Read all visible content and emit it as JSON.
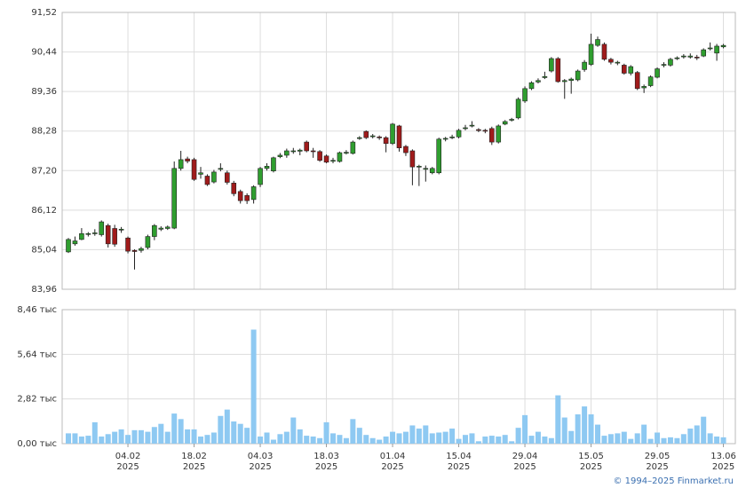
{
  "chart_data": [
    {
      "type": "candlestick",
      "up_color": "#2f9e2f",
      "down_color": "#a01b1b",
      "grid": true,
      "ylim": [
        83.96,
        91.52
      ],
      "yticks": [
        {
          "value": 83.96,
          "label": "83,96"
        },
        {
          "value": 85.04,
          "label": "85,04"
        },
        {
          "value": 86.12,
          "label": "86,12"
        },
        {
          "value": 87.2,
          "label": "87,20"
        },
        {
          "value": 88.28,
          "label": "88,28"
        },
        {
          "value": 89.36,
          "label": "89,36"
        },
        {
          "value": 90.44,
          "label": "90,44"
        },
        {
          "value": 91.52,
          "label": "91,52"
        }
      ],
      "open": [
        84.98,
        85.2,
        85.32,
        85.46,
        85.48,
        85.45,
        85.7,
        85.62,
        85.58,
        85.36,
        85.02,
        85.02,
        85.1,
        85.4,
        85.6,
        85.62,
        85.63,
        87.26,
        87.52,
        87.5,
        87.1,
        87.05,
        86.89,
        87.24,
        87.14,
        86.86,
        86.63,
        86.52,
        86.41,
        86.82,
        87.26,
        87.19,
        87.58,
        87.62,
        87.72,
        87.73,
        87.98,
        87.74,
        87.72,
        87.6,
        87.46,
        87.45,
        87.68,
        87.67,
        88.08,
        88.27,
        88.13,
        88.12,
        88.1,
        87.94,
        88.42,
        87.86,
        87.74,
        87.3,
        87.24,
        87.14,
        87.14,
        88.06,
        88.1,
        88.12,
        88.35,
        88.42,
        88.32,
        88.3,
        88.35,
        87.98,
        88.47,
        88.58,
        88.64,
        89.1,
        89.44,
        89.62,
        89.74,
        89.92,
        90.26,
        89.63,
        89.66,
        89.68,
        89.96,
        90.1,
        90.62,
        90.65,
        90.24,
        90.14,
        90.08,
        89.86,
        89.88,
        89.46,
        89.52,
        89.75,
        90.08,
        90.08,
        90.26,
        90.31,
        90.3,
        90.3,
        90.33,
        90.53,
        90.41,
        90.58
      ],
      "high": [
        85.36,
        85.4,
        85.63,
        85.52,
        85.6,
        85.84,
        85.75,
        85.72,
        85.66,
        85.4,
        85.05,
        85.12,
        85.45,
        85.74,
        85.68,
        85.7,
        87.45,
        87.74,
        87.58,
        87.55,
        87.3,
        87.1,
        87.22,
        87.4,
        87.2,
        86.92,
        86.68,
        86.58,
        86.8,
        87.3,
        87.4,
        87.58,
        87.68,
        87.8,
        87.82,
        87.8,
        88.02,
        87.82,
        87.76,
        87.64,
        87.55,
        87.72,
        87.76,
        88.02,
        88.14,
        88.3,
        88.2,
        88.16,
        88.14,
        88.5,
        88.45,
        87.9,
        87.78,
        87.36,
        87.34,
        87.3,
        88.1,
        88.12,
        88.18,
        88.34,
        88.45,
        88.55,
        88.36,
        88.34,
        88.4,
        88.46,
        88.58,
        88.64,
        89.2,
        89.5,
        89.64,
        89.72,
        89.9,
        90.3,
        90.3,
        89.7,
        89.74,
        89.96,
        90.22,
        90.94,
        90.86,
        90.7,
        90.28,
        90.2,
        90.12,
        90.08,
        89.92,
        89.55,
        89.8,
        90.02,
        90.16,
        90.28,
        90.32,
        90.38,
        90.4,
        90.36,
        90.54,
        90.7,
        90.66,
        90.66
      ],
      "low": [
        84.95,
        85.15,
        85.3,
        85.4,
        85.42,
        85.4,
        85.1,
        85.12,
        85.5,
        84.94,
        84.5,
        84.96,
        85.05,
        85.3,
        85.55,
        85.58,
        85.6,
        87.2,
        87.4,
        86.92,
        86.98,
        86.78,
        86.85,
        87.18,
        86.82,
        86.5,
        86.3,
        86.29,
        86.3,
        86.75,
        87.2,
        87.15,
        87.54,
        87.55,
        87.66,
        87.62,
        87.7,
        87.55,
        87.44,
        87.4,
        87.4,
        87.42,
        87.64,
        87.64,
        88.04,
        88.06,
        88.08,
        88.04,
        87.7,
        87.9,
        87.72,
        87.6,
        86.8,
        86.78,
        86.9,
        87.1,
        87.1,
        88.0,
        88.06,
        88.08,
        88.3,
        88.38,
        88.25,
        88.22,
        87.9,
        87.94,
        88.44,
        88.54,
        88.6,
        89.05,
        89.4,
        89.58,
        89.7,
        89.88,
        89.6,
        89.16,
        89.3,
        89.64,
        89.9,
        90.06,
        90.58,
        90.2,
        90.1,
        90.08,
        89.82,
        89.8,
        89.4,
        89.32,
        89.48,
        89.72,
        90.02,
        90.04,
        90.22,
        90.26,
        90.26,
        90.22,
        90.3,
        90.48,
        90.2,
        90.54
      ],
      "close": [
        85.32,
        85.28,
        85.48,
        85.48,
        85.5,
        85.8,
        85.2,
        85.19,
        85.6,
        85.0,
        84.99,
        85.07,
        85.4,
        85.7,
        85.63,
        85.66,
        87.26,
        87.5,
        87.46,
        86.96,
        87.14,
        86.82,
        87.16,
        87.26,
        86.88,
        86.57,
        86.38,
        86.38,
        86.76,
        87.26,
        87.32,
        87.55,
        87.62,
        87.74,
        87.74,
        87.76,
        87.74,
        87.72,
        87.48,
        87.43,
        87.48,
        87.69,
        87.7,
        87.98,
        88.1,
        88.1,
        88.15,
        88.1,
        87.94,
        88.47,
        87.82,
        87.69,
        87.3,
        87.32,
        87.26,
        87.26,
        88.06,
        88.08,
        88.12,
        88.3,
        88.37,
        88.44,
        88.3,
        88.28,
        87.98,
        88.42,
        88.54,
        88.6,
        89.15,
        89.44,
        89.6,
        89.66,
        89.77,
        90.26,
        89.63,
        89.66,
        89.7,
        89.92,
        90.16,
        90.65,
        90.78,
        90.24,
        90.16,
        90.16,
        89.86,
        90.04,
        89.44,
        89.5,
        89.76,
        89.98,
        90.1,
        90.24,
        90.28,
        90.33,
        90.33,
        90.28,
        90.5,
        90.55,
        90.6,
        90.62
      ]
    },
    {
      "type": "bar",
      "color": "#8ec9f2",
      "grid": true,
      "ylim": [
        0,
        8.46
      ],
      "yticks": [
        {
          "value": 0,
          "label": "0,00 тыс"
        },
        {
          "value": 2.82,
          "label": "2,82 тыс"
        },
        {
          "value": 5.64,
          "label": "5,64 тыс"
        },
        {
          "value": 8.46,
          "label": "8,46 тыс"
        }
      ],
      "categories": [
        null,
        null,
        null,
        null,
        null,
        null,
        null,
        null,
        null,
        [
          "04.02",
          "2025"
        ],
        null,
        null,
        null,
        null,
        null,
        null,
        null,
        null,
        null,
        [
          "18.02",
          "2025"
        ],
        null,
        null,
        null,
        null,
        null,
        null,
        null,
        null,
        null,
        [
          "04.03",
          "2025"
        ],
        null,
        null,
        null,
        null,
        null,
        null,
        null,
        null,
        null,
        [
          "18.03",
          "2025"
        ],
        null,
        null,
        null,
        null,
        null,
        null,
        null,
        null,
        null,
        [
          "01.04",
          "2025"
        ],
        null,
        null,
        null,
        null,
        null,
        null,
        null,
        null,
        null,
        [
          "15.04",
          "2025"
        ],
        null,
        null,
        null,
        null,
        null,
        null,
        null,
        null,
        null,
        [
          "29.04",
          "2025"
        ],
        null,
        null,
        null,
        null,
        null,
        null,
        null,
        null,
        null,
        [
          "15.05",
          "2025"
        ],
        null,
        null,
        null,
        null,
        null,
        null,
        null,
        null,
        null,
        [
          "29.05",
          "2025"
        ],
        null,
        null,
        null,
        null,
        null,
        null,
        null,
        null,
        null,
        [
          "13.06",
          "2025"
        ]
      ],
      "values": [
        0.65,
        0.65,
        0.45,
        0.5,
        1.35,
        0.45,
        0.6,
        0.75,
        0.9,
        0.55,
        0.85,
        0.85,
        0.75,
        1.05,
        1.25,
        0.75,
        1.9,
        1.55,
        0.9,
        0.9,
        0.45,
        0.55,
        0.7,
        1.75,
        2.15,
        1.4,
        1.25,
        1.0,
        7.2,
        0.45,
        0.7,
        0.25,
        0.6,
        0.75,
        1.65,
        0.9,
        0.5,
        0.45,
        0.35,
        1.35,
        0.65,
        0.55,
        0.35,
        1.55,
        1.0,
        0.55,
        0.35,
        0.25,
        0.45,
        0.75,
        0.65,
        0.75,
        1.15,
        0.95,
        1.15,
        0.65,
        0.7,
        0.75,
        0.95,
        0.3,
        0.55,
        0.65,
        0.15,
        0.45,
        0.5,
        0.45,
        0.55,
        0.15,
        1.0,
        1.8,
        0.5,
        0.75,
        0.45,
        0.35,
        3.05,
        1.65,
        0.8,
        1.85,
        2.35,
        1.85,
        1.2,
        0.5,
        0.6,
        0.65,
        0.75,
        0.3,
        0.65,
        1.2,
        0.3,
        0.7,
        0.35,
        0.4,
        0.35,
        0.6,
        0.95,
        1.15,
        1.7,
        0.65,
        0.45,
        0.4
      ]
    }
  ],
  "footer": "© 1994–2025 Finmarket.ru"
}
